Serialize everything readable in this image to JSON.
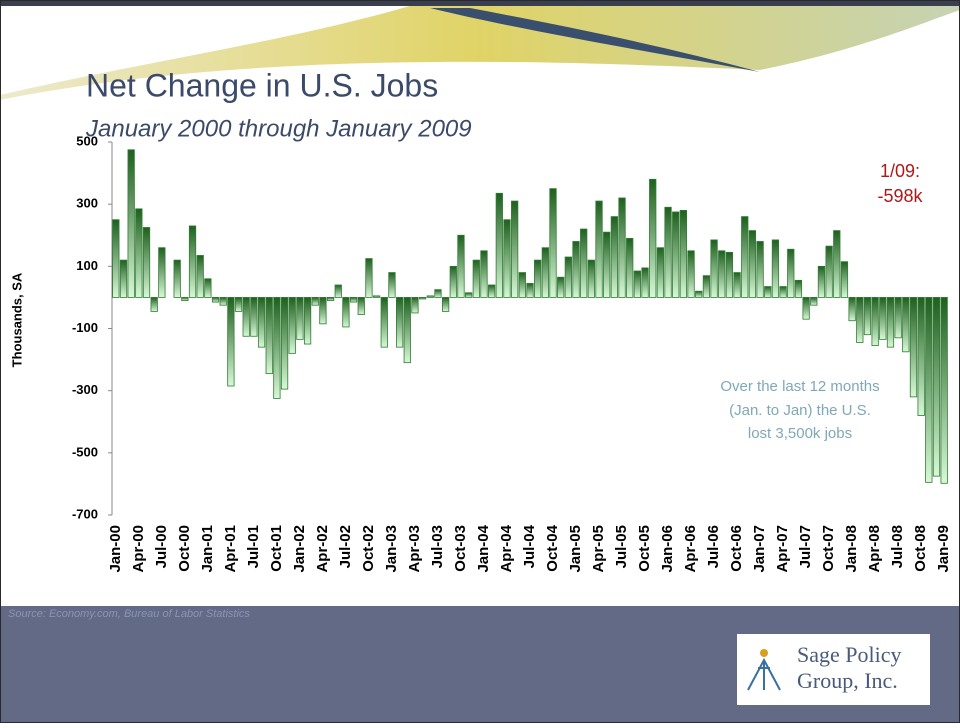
{
  "chart_data": {
    "type": "bar",
    "title": "Net Change in U.S. Jobs",
    "subtitle": "January 2000 through January 2009",
    "y_label": "Thousands, SA",
    "categories": [
      "Jan-00",
      null,
      null,
      "Apr-00",
      null,
      null,
      "Jul-00",
      null,
      null,
      "Oct-00",
      null,
      null,
      "Jan-01",
      null,
      null,
      "Apr-01",
      null,
      null,
      "Jul-01",
      null,
      null,
      "Oct-01",
      null,
      null,
      "Jan-02",
      null,
      null,
      "Apr-02",
      null,
      null,
      "Jul-02",
      null,
      null,
      "Oct-02",
      null,
      null,
      "Jan-03",
      null,
      null,
      "Apr-03",
      null,
      null,
      "Jul-03",
      null,
      null,
      "Oct-03",
      null,
      null,
      "Jan-04",
      null,
      null,
      "Apr-04",
      null,
      null,
      "Jul-04",
      null,
      null,
      "Oct-04",
      null,
      null,
      "Jan-05",
      null,
      null,
      "Apr-05",
      null,
      null,
      "Jul-05",
      null,
      null,
      "Oct-05",
      null,
      null,
      "Jan-06",
      null,
      null,
      "Apr-06",
      null,
      null,
      "Jul-06",
      null,
      null,
      "Oct-06",
      null,
      null,
      "Jan-07",
      null,
      null,
      "Apr-07",
      null,
      null,
      "Jul-07",
      null,
      null,
      "Oct-07",
      null,
      null,
      "Jan-08",
      null,
      null,
      "Apr-08",
      null,
      null,
      "Jul-08",
      null,
      null,
      "Oct-08",
      null,
      null,
      "Jan-09"
    ],
    "values": [
      250,
      120,
      475,
      285,
      225,
      -45,
      160,
      0,
      120,
      -10,
      230,
      135,
      60,
      -15,
      -25,
      -285,
      -45,
      -125,
      -125,
      -160,
      -245,
      -325,
      -295,
      -180,
      -135,
      -150,
      -25,
      -85,
      -10,
      40,
      -95,
      -15,
      -55,
      125,
      5,
      -160,
      80,
      -160,
      -210,
      -50,
      -5,
      5,
      25,
      -45,
      100,
      200,
      15,
      120,
      150,
      40,
      335,
      250,
      310,
      80,
      45,
      120,
      160,
      350,
      65,
      130,
      180,
      220,
      120,
      310,
      210,
      260,
      320,
      190,
      85,
      95,
      380,
      160,
      290,
      275,
      280,
      150,
      20,
      70,
      185,
      150,
      145,
      80,
      260,
      215,
      180,
      35,
      185,
      35,
      155,
      55,
      -70,
      -25,
      100,
      165,
      215,
      115,
      -75,
      -145,
      -120,
      -155,
      -135,
      -160,
      -130,
      -175,
      -320,
      -380,
      -595,
      -575,
      -598
    ],
    "color": "#2e7d32",
    "ylim": [
      -700,
      500
    ],
    "yticks": [
      500,
      300,
      100,
      -100,
      -300,
      -500,
      -700
    ],
    "annotations": [
      "1/09:",
      "-598k"
    ],
    "note": [
      "Over the last 12 months",
      "(Jan. to Jan) the U.S.",
      "lost  3,500k  jobs"
    ]
  },
  "source": "Source: Economy.com, Bureau of Labor Statistics",
  "logo": [
    "Sage Policy",
    "Group, Inc."
  ]
}
